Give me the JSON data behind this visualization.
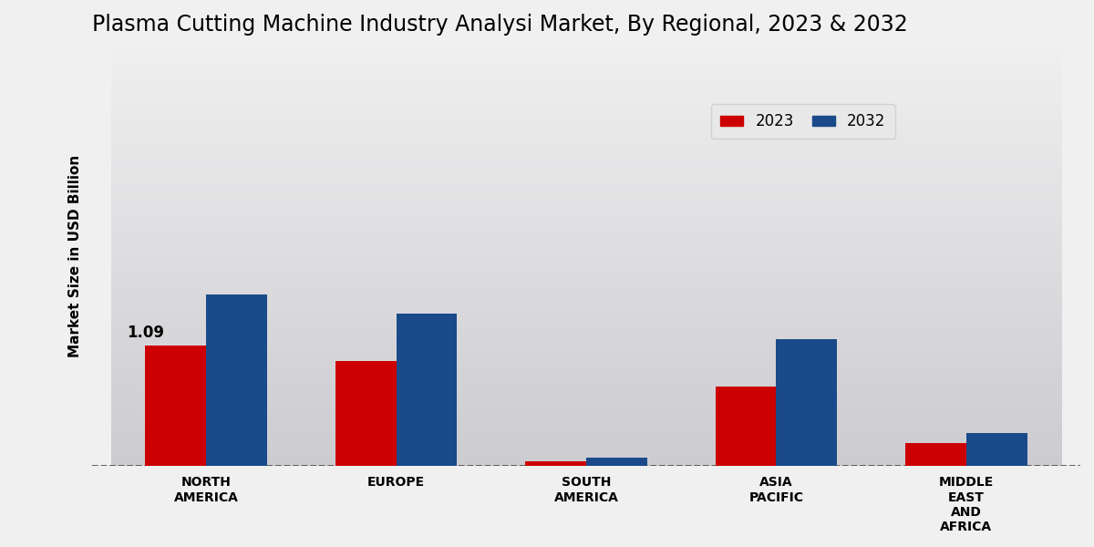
{
  "title": "Plasma Cutting Machine Industry Analysi Market, By Regional, 2023 & 2032",
  "ylabel": "Market Size in USD Billion",
  "categories": [
    "NORTH\nAMERICA",
    "EUROPE",
    "SOUTH\nAMERICA",
    "ASIA\nPACIFIC",
    "MIDDLE\nEAST\nAND\nAFRICA"
  ],
  "values_2023": [
    1.09,
    0.95,
    0.04,
    0.72,
    0.21
  ],
  "values_2032": [
    1.55,
    1.38,
    0.08,
    1.15,
    0.3
  ],
  "color_2023": "#cc0000",
  "color_2032": "#1a4a8a",
  "annotation_value": "1.09",
  "annotation_category_index": 0,
  "legend_labels": [
    "2023",
    "2032"
  ],
  "bar_width": 0.32,
  "ylim": [
    0,
    3.8
  ],
  "title_fontsize": 17,
  "label_fontsize": 11,
  "tick_fontsize": 10,
  "bg_top": "#f0f0f0",
  "bg_bottom": "#d0d0d0"
}
